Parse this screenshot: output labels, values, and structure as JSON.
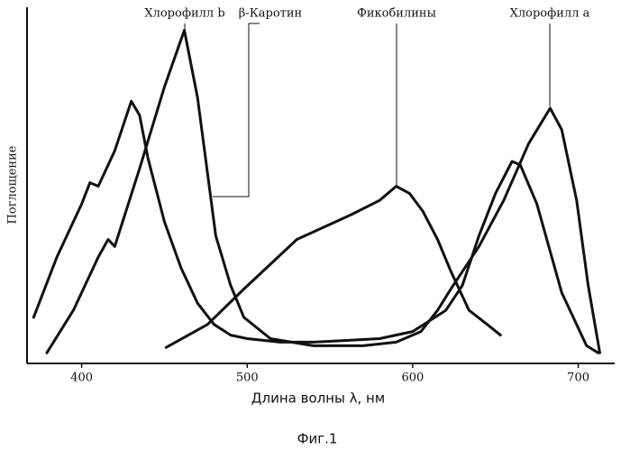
{
  "chart_data": {
    "type": "line",
    "xlabel": "Длина волны λ, нм",
    "ylabel": "Поглощение",
    "caption": "Фиг.1",
    "annotations": [
      "Хлорофилл b",
      "β-Каротин",
      "Фикобилины",
      "Хлорофилл a"
    ],
    "xlim": [
      367,
      722
    ],
    "xticks": [
      400,
      500,
      600,
      700
    ],
    "ylim": [
      0,
      100
    ],
    "color": "#111111",
    "series": [
      {
        "color": "#111111",
        "x": [
          371,
          385,
          400,
          405,
          410,
          420,
          425,
          430,
          435,
          440,
          450,
          460,
          470,
          480,
          490,
          500,
          520,
          540,
          560,
          580,
          600,
          620,
          630,
          640,
          650,
          660,
          665,
          675,
          690,
          705,
          712
        ],
        "values": [
          13,
          30,
          45,
          51,
          50,
          60,
          67,
          74,
          70,
          58,
          40,
          27,
          17,
          11,
          8,
          7,
          6,
          6,
          6.5,
          7,
          9,
          15,
          22,
          36,
          48,
          57,
          56,
          45,
          20,
          5,
          3
        ]
      },
      {
        "color": "#111111",
        "x": [
          379,
          395,
          410,
          416,
          420,
          435,
          450,
          462,
          470,
          481,
          490,
          498,
          514,
          540,
          570,
          590,
          605,
          615,
          623,
          640,
          655,
          670,
          683,
          690,
          699,
          706,
          713
        ],
        "values": [
          3,
          15,
          30,
          35,
          33,
          55,
          78,
          94,
          75,
          36,
          22,
          13,
          7,
          5,
          5,
          6,
          9,
          15,
          21,
          33,
          46,
          62,
          72,
          66,
          46,
          22,
          3
        ]
      },
      {
        "color": "#111111",
        "x": [
          451,
          476,
          498,
          530,
          563,
          580,
          590,
          598,
          606,
          615,
          623,
          634,
          645,
          653
        ],
        "values": [
          4.5,
          11,
          21,
          35,
          42,
          46,
          50,
          48,
          43,
          35,
          26,
          15,
          11,
          8
        ]
      }
    ]
  }
}
